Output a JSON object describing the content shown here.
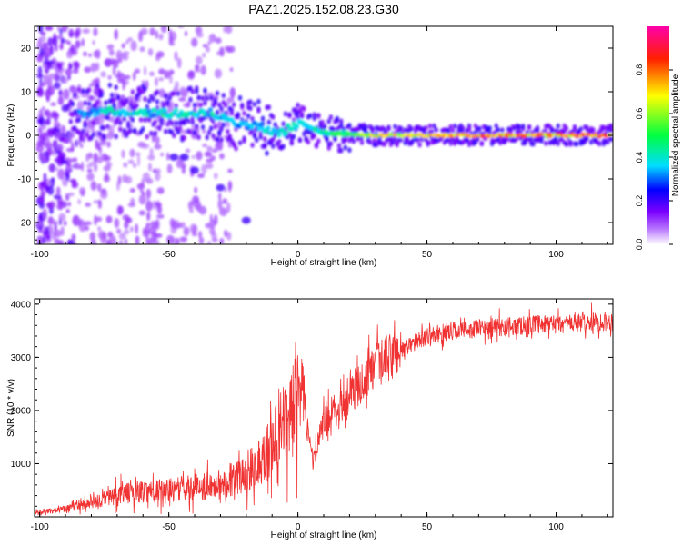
{
  "title": "PAZ1.2025.152.08.23.G30",
  "chart_data": [
    {
      "type": "heatmap",
      "xlabel": "Height of straight line (km)",
      "ylabel": "Frequency (Hz)",
      "xlim": [
        -102,
        122
      ],
      "ylim": [
        -25,
        25
      ],
      "xticks": [
        -100,
        -50,
        0,
        50,
        100
      ],
      "yticks": [
        -20,
        -10,
        0,
        10,
        20
      ],
      "colorbar": {
        "label": "Normalized spectral amplitude",
        "range": [
          0,
          1
        ],
        "ticks": [
          "0.0",
          "0.2",
          "0.4",
          "0.6",
          "0.8"
        ],
        "colors": [
          "#ffffff",
          "#8800ff",
          "#0000ff",
          "#00ffff",
          "#00ff00",
          "#ffff00",
          "#ff0000",
          "#ff00ff"
        ]
      },
      "ridge": {
        "x": [
          -85,
          -75,
          -65,
          -55,
          -45,
          -35,
          -25,
          -15,
          -10,
          -5,
          0,
          5,
          10,
          20,
          30,
          50,
          80,
          122
        ],
        "freq": [
          5,
          5.5,
          5.5,
          5,
          5,
          5.5,
          3,
          2,
          0.5,
          1,
          3,
          2,
          0.5,
          0.3,
          0,
          0,
          0,
          0
        ],
        "amplitude": [
          0.35,
          0.4,
          0.42,
          0.4,
          0.45,
          0.42,
          0.35,
          0.35,
          0.45,
          0.4,
          0.4,
          0.45,
          0.45,
          0.55,
          0.7,
          0.75,
          0.8,
          0.85
        ]
      }
    },
    {
      "type": "line",
      "xlabel": "Height of straight line (km)",
      "ylabel": "SNR (10 * v/v)",
      "xlim": [
        -102,
        122
      ],
      "ylim": [
        0,
        4100
      ],
      "xticks": [
        -100,
        -50,
        0,
        50,
        100
      ],
      "yticks": [
        1000,
        2000,
        3000,
        4000
      ],
      "color": "#f03232",
      "trend": {
        "x": [
          -102,
          -90,
          -80,
          -70,
          -60,
          -50,
          -40,
          -30,
          -20,
          -15,
          -10,
          -5,
          0,
          2,
          4,
          6,
          10,
          20,
          30,
          40,
          50,
          60,
          80,
          100,
          122
        ],
        "snr": [
          80,
          150,
          250,
          420,
          480,
          500,
          560,
          620,
          800,
          1050,
          1350,
          1750,
          2200,
          2700,
          1500,
          1050,
          1800,
          2300,
          2800,
          3150,
          3400,
          3500,
          3580,
          3620,
          3680
        ]
      }
    }
  ]
}
